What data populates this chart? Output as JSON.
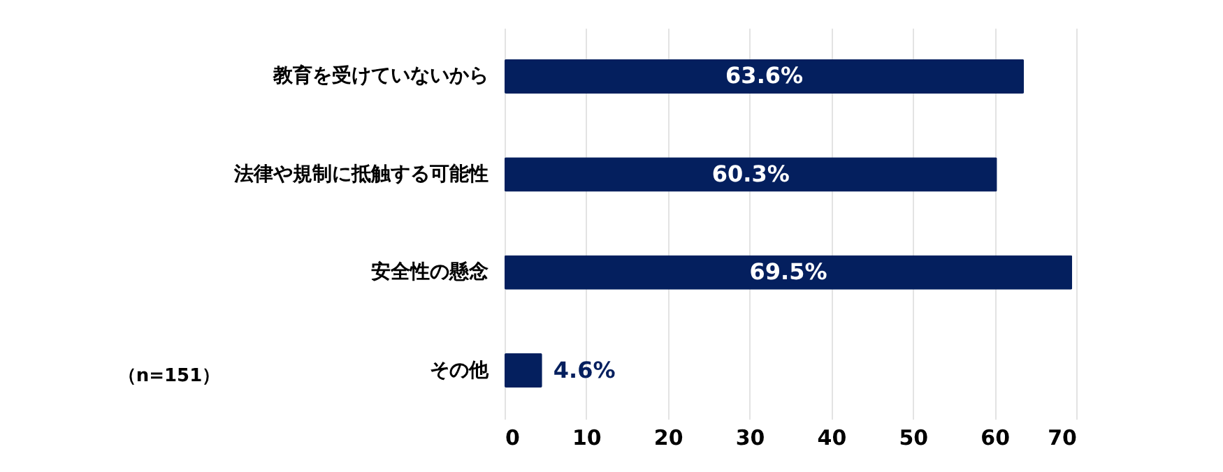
{
  "chart_data": {
    "type": "bar",
    "orientation": "horizontal",
    "categories": [
      "教育を受けていないから",
      "法律や規制に抵触する可能性",
      "安全性の懸念",
      "その他"
    ],
    "values": [
      63.6,
      60.3,
      69.5,
      4.6
    ],
    "value_labels": [
      "63.6%",
      "60.3%",
      "69.5%",
      "4.6%"
    ],
    "color": "#041f5e",
    "xlim": [
      0,
      70
    ],
    "xticks": [
      0,
      10,
      20,
      30,
      40,
      50,
      60,
      70
    ],
    "grid": "x",
    "annotations": [
      "（n=151）"
    ]
  }
}
